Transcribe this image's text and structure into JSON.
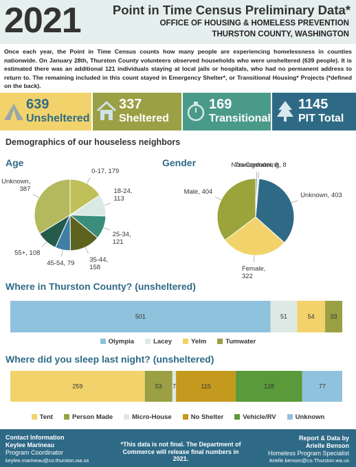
{
  "header": {
    "year": "2021",
    "title": "Point in Time Census Preliminary Data*",
    "subtitle": [
      "OFFICE OF HOUSING & HOMELESS PREVENTION",
      "THURSTON COUNTY, WASHINGTON"
    ]
  },
  "intro": "Once each year, the Point in Time Census counts how many people are experiencing homelessness in counties nationwide. On January 28th, Thurston County volunteers observed households who were unsheltered (639 people). It is estimated there was an additional 121 individuals staying at local jails or hospitals, who had no permanent address to return to. The remaining included in this count stayed in Emergency Shelter*, or Transitional Housing* Projects (*defined on the back).",
  "stats": [
    {
      "value": 639,
      "label": "Unsheltered"
    },
    {
      "value": 337,
      "label": "Sheltered"
    },
    {
      "value": 169,
      "label": "Transitional"
    },
    {
      "value": 1145,
      "label": "PIT Total"
    }
  ],
  "demographics_heading": "Demographics of our houseless neighbors",
  "chart_data": [
    {
      "type": "pie",
      "title": "Age",
      "values": [
        179,
        113,
        121,
        158,
        79,
        108,
        387
      ],
      "value_labels": [
        "0-17, 179",
        "18-24,\n113",
        "25-34,\n121",
        "35-44,\n158",
        "45-54, 79",
        "55+, 108",
        "Unknown,\n387"
      ],
      "colors": [
        "#bfc05a",
        "#dbe9e5",
        "#3b8e7b",
        "#5d621f",
        "#3f7fa6",
        "#255b4c",
        "#b5b95e"
      ]
    },
    {
      "type": "pie",
      "title": "Gender",
      "values": [
        8,
        8,
        403,
        322,
        404
      ],
      "value_labels": [
        "Transgender, 8",
        "Non-Conforming, 8",
        "Unknown, 403",
        "Female,\n322",
        "Male, 404"
      ],
      "colors": [
        "#5a9a8c",
        "#dbe9e5",
        "#2e6a86",
        "#f2d36b",
        "#9aa43b"
      ]
    },
    {
      "type": "stacked-bar",
      "title": "Where in Thurston County? (unsheltered)",
      "series": [
        {
          "name": "Olympia",
          "color": "#8fc3dd",
          "values": [
            501
          ]
        },
        {
          "name": "Lacey",
          "color": "#dde9e4",
          "values": [
            51
          ]
        },
        {
          "name": "Yelm",
          "color": "#f2d36b",
          "values": [
            54
          ]
        },
        {
          "name": "Tumwater",
          "color": "#9aa043",
          "values": [
            33
          ]
        }
      ]
    },
    {
      "type": "stacked-bar",
      "title": "Where did you sleep last night? (unsheltered)",
      "series": [
        {
          "name": "Tent",
          "color": "#f2d36b",
          "values": [
            259
          ]
        },
        {
          "name": "Person Made",
          "color": "#9aa043",
          "values": [
            53
          ]
        },
        {
          "name": "Micro-House",
          "color": "#dde9e4",
          "values": [
            7
          ]
        },
        {
          "name": "No Shelter",
          "color": "#c49a1e",
          "values": [
            115
          ]
        },
        {
          "name": "Vehicle/RV",
          "color": "#5a9a3a",
          "values": [
            128
          ]
        },
        {
          "name": "Unknown",
          "color": "#8fc3dd",
          "values": [
            77
          ]
        }
      ]
    }
  ],
  "footer": {
    "left": [
      "Contact Information",
      "Keylee Marineau",
      "Program Coordinator",
      "keylee.marineau@co.thurston.wa.us"
    ],
    "note": "*This data is not final. The Department of Commerce will release final numbers in 2021.",
    "right": [
      "Report & Data by",
      "Arielle Benson",
      "Homeless Program Specialist",
      "Arielle.benson@co.Thurston.wa.us"
    ]
  }
}
